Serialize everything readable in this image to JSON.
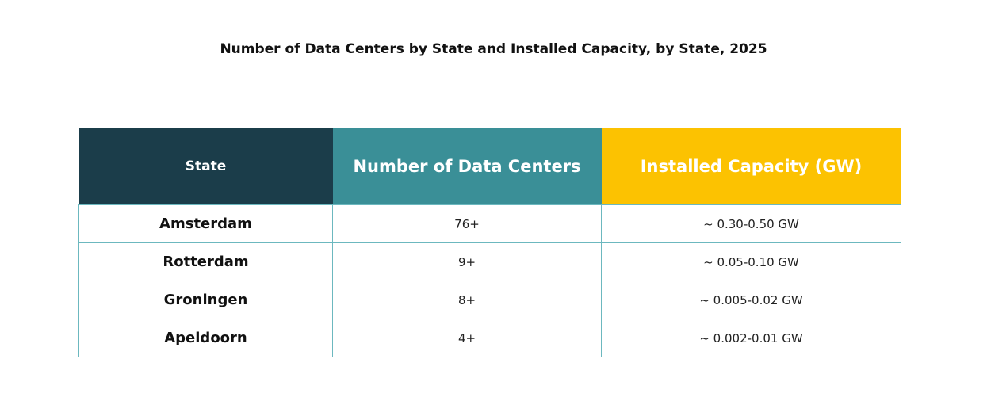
{
  "title": "Number of Data Centers by State and Installed Capacity, by State, 2025",
  "table": {
    "headers": [
      "State",
      "Number of Data Centers",
      "Installed Capacity (GW)"
    ],
    "rows": [
      [
        "Amsterdam",
        "76+",
        "~ 0.30-0.50 GW"
      ],
      [
        "Rotterdam",
        "9+",
        "~ 0.05-0.10 GW"
      ],
      [
        "Groningen",
        "8+",
        "~ 0.005-0.02 GW"
      ],
      [
        "Apeldoorn",
        "4+",
        "~ 0.002-0.01 GW"
      ]
    ]
  }
}
